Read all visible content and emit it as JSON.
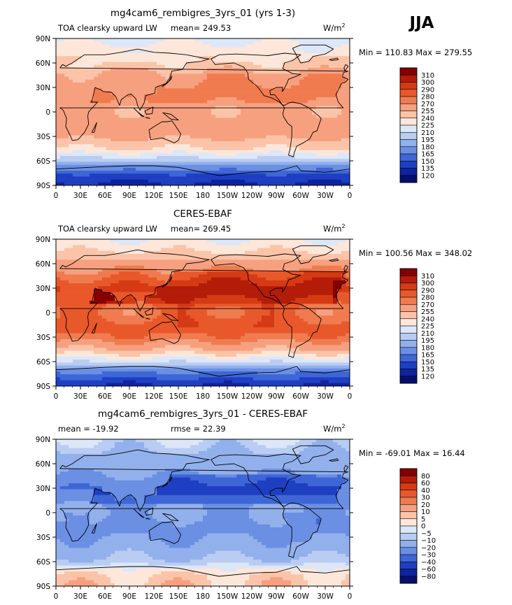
{
  "season": "JJA",
  "panels": [
    {
      "title": "mg4cam6_rembigres_3yrs_01 (yrs 1-3)",
      "left_label": "TOA clearsky upward LW",
      "mean_label": "mean= 249.53",
      "units": "W/m",
      "units_sup": "2",
      "minmax": "Min = 110.83 Max = 279.55",
      "scheme": "abs_model"
    },
    {
      "title": "CERES-EBAF",
      "left_label": "TOA clearsky upward LW",
      "mean_label": "mean= 269.45",
      "units": "W/m",
      "units_sup": "2",
      "minmax": "Min = 100.56 Max = 348.02",
      "scheme": "abs_obs"
    },
    {
      "title": "mg4cam6_rembigres_3yrs_01 - CERES-EBAF",
      "left_label": "mean = -19.92",
      "mean_label": "rmse =  22.39",
      "units": "W/m",
      "units_sup": "2",
      "minmax": "Min = -69.01 Max =  16.44",
      "scheme": "diff"
    }
  ],
  "axes": {
    "lat_ticks": [
      "90N",
      "60N",
      "30N",
      "0",
      "30S",
      "60S",
      "90S"
    ],
    "lon_ticks": [
      "0",
      "30E",
      "60E",
      "90E",
      "120E",
      "150E",
      "180",
      "150W",
      "120W",
      "90W",
      "60W",
      "30W",
      "0"
    ]
  },
  "colorbars": {
    "absolute": [
      "310",
      "300",
      "290",
      "280",
      "270",
      "255",
      "240",
      "225",
      "210",
      "195",
      "180",
      "165",
      "150",
      "135",
      "120"
    ],
    "difference": [
      "80",
      "60",
      "40",
      "30",
      "20",
      "10",
      "5",
      "0",
      "−5",
      "−10",
      "−20",
      "−30",
      "−40",
      "−60",
      "−80"
    ]
  },
  "colors": {
    "abs_palette": [
      "#850101",
      "#b31c09",
      "#d53a14",
      "#e8582b",
      "#f07b4f",
      "#f6a07f",
      "#fbc4a8",
      "#fde7da",
      "#dce7f8",
      "#b9cdf3",
      "#92b0ec",
      "#6a8fe3",
      "#3e66d6",
      "#1e3fc2",
      "#0d23a0",
      "#040f6e"
    ],
    "diff_palette": [
      "#850101",
      "#b31c09",
      "#d53a14",
      "#e8582b",
      "#f07b4f",
      "#f6a07f",
      "#fbc4a8",
      "#fde7da",
      "#dce7f8",
      "#b9cdf3",
      "#92b0ec",
      "#6a8fe3",
      "#3e66d6",
      "#1e3fc2",
      "#0d23a0",
      "#040f6e"
    ]
  },
  "chart_data": [
    {
      "type": "heatmap",
      "title": "mg4cam6_rembigres_3yrs_01 (yrs 1-3)",
      "variable": "TOA clearsky upward LW",
      "units": "W/m^2",
      "mean": 249.53,
      "min": 110.83,
      "max": 279.55,
      "levels": [
        120,
        135,
        150,
        165,
        180,
        195,
        210,
        225,
        240,
        255,
        270,
        280,
        290,
        300,
        310
      ],
      "latitude_range": [
        -90,
        90
      ],
      "longitude_range": [
        0,
        360
      ],
      "zonal_profile": {
        "lat": [
          90,
          75,
          60,
          45,
          30,
          15,
          0,
          -15,
          -30,
          -45,
          -60,
          -75,
          -90
        ],
        "value": [
          220,
          232,
          248,
          258,
          262,
          262,
          258,
          262,
          258,
          240,
          200,
          150,
          130
        ]
      }
    },
    {
      "type": "heatmap",
      "title": "CERES-EBAF",
      "variable": "TOA clearsky upward LW",
      "units": "W/m^2",
      "mean": 269.45,
      "min": 100.56,
      "max": 348.02,
      "levels": [
        120,
        135,
        150,
        165,
        180,
        195,
        210,
        225,
        240,
        255,
        270,
        280,
        290,
        300,
        310
      ],
      "latitude_range": [
        -90,
        90
      ],
      "longitude_range": [
        0,
        360
      ],
      "zonal_profile": {
        "lat": [
          90,
          75,
          60,
          45,
          30,
          15,
          0,
          -15,
          -30,
          -45,
          -60,
          -75,
          -90
        ],
        "value": [
          225,
          240,
          262,
          278,
          292,
          284,
          276,
          284,
          278,
          255,
          212,
          160,
          132
        ]
      }
    },
    {
      "type": "heatmap",
      "title": "mg4cam6_rembigres_3yrs_01 - CERES-EBAF",
      "units": "W/m^2",
      "mean": -19.92,
      "rmse": 22.39,
      "min": -69.01,
      "max": 16.44,
      "levels": [
        -80,
        -60,
        -40,
        -30,
        -20,
        -10,
        -5,
        0,
        5,
        10,
        20,
        30,
        40,
        60,
        80
      ],
      "latitude_range": [
        -90,
        90
      ],
      "longitude_range": [
        0,
        360
      ],
      "zonal_profile": {
        "lat": [
          90,
          75,
          60,
          45,
          30,
          15,
          0,
          -15,
          -30,
          -45,
          -60,
          -75,
          -90
        ],
        "value": [
          -5,
          -10,
          -14,
          -20,
          -30,
          -22,
          -18,
          -22,
          -20,
          -15,
          -8,
          5,
          8
        ]
      }
    }
  ]
}
